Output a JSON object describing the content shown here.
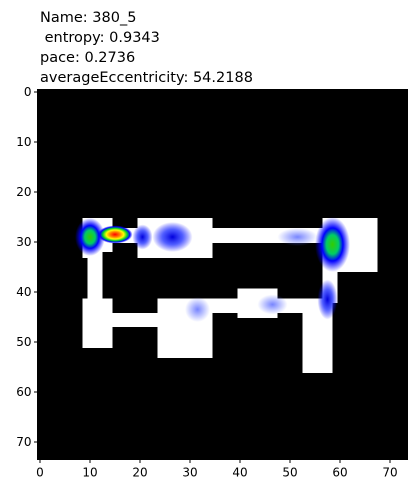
{
  "chart_data": {
    "type": "image",
    "title": [
      "Name: 380_5",
      " entropy: 0.9343",
      "pace: 0.2736",
      "averageEccentricity: 54.2188"
    ],
    "xlim": [
      -0.5,
      73.5
    ],
    "ylim": [
      73.5,
      -0.5
    ],
    "xticks": [
      0,
      10,
      20,
      30,
      40,
      50,
      60,
      70
    ],
    "yticks": [
      0,
      10,
      20,
      30,
      40,
      50,
      60,
      70
    ]
  }
}
